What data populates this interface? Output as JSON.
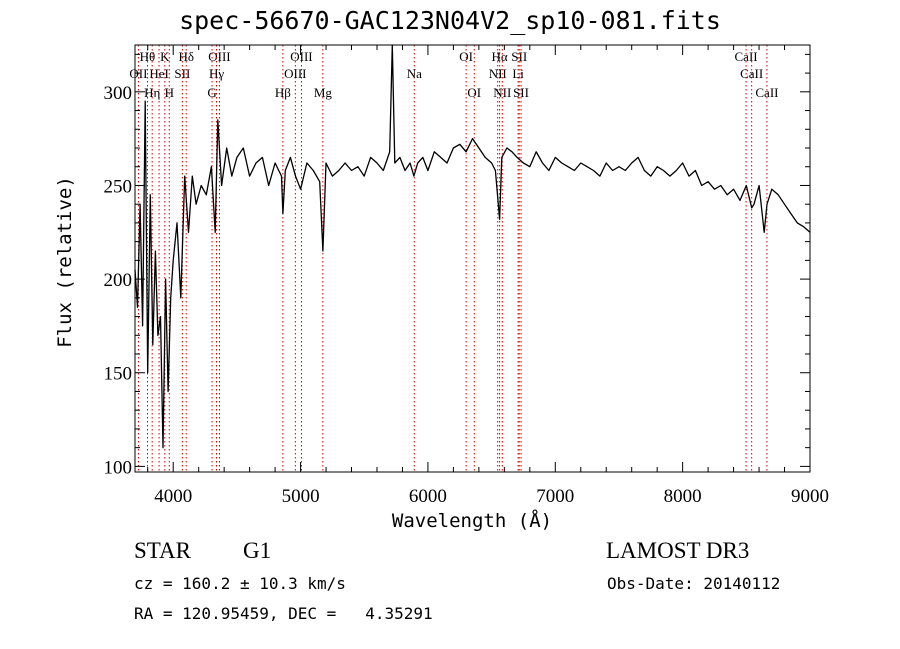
{
  "chart_data": {
    "type": "line",
    "title": "spec-56670-GAC123N04V2_sp10-081.fits",
    "xlabel": "Wavelength (Å)",
    "ylabel": "Flux (relative)",
    "xlim": [
      3700,
      9000
    ],
    "ylim": [
      97,
      325
    ],
    "xticks": [
      4000,
      5000,
      6000,
      7000,
      8000,
      9000
    ],
    "yticks": [
      100,
      150,
      200,
      250,
      300
    ],
    "series": [
      {
        "name": "flux",
        "x": [
          3700,
          3720,
          3740,
          3760,
          3780,
          3800,
          3820,
          3840,
          3860,
          3880,
          3900,
          3920,
          3940,
          3960,
          3980,
          4000,
          4030,
          4060,
          4090,
          4120,
          4150,
          4180,
          4220,
          4260,
          4300,
          4330,
          4350,
          4380,
          4420,
          4460,
          4500,
          4550,
          4600,
          4650,
          4700,
          4750,
          4800,
          4850,
          4861,
          4880,
          4920,
          4960,
          5000,
          5050,
          5100,
          5150,
          5175,
          5200,
          5250,
          5300,
          5350,
          5400,
          5450,
          5500,
          5550,
          5600,
          5650,
          5700,
          5720,
          5740,
          5780,
          5820,
          5860,
          5890,
          5920,
          5960,
          6000,
          6050,
          6100,
          6150,
          6200,
          6250,
          6300,
          6350,
          6400,
          6450,
          6500,
          6530,
          6563,
          6580,
          6620,
          6660,
          6700,
          6750,
          6800,
          6850,
          6900,
          6950,
          7000,
          7050,
          7100,
          7150,
          7200,
          7250,
          7300,
          7350,
          7400,
          7450,
          7500,
          7550,
          7600,
          7650,
          7700,
          7750,
          7800,
          7850,
          7900,
          7950,
          8000,
          8050,
          8100,
          8150,
          8200,
          8250,
          8300,
          8350,
          8400,
          8450,
          8500,
          8542,
          8560,
          8600,
          8640,
          8662,
          8700,
          8750,
          8800,
          8850,
          8900,
          8950,
          9000
        ],
        "y": [
          205,
          185,
          240,
          175,
          295,
          150,
          245,
          165,
          215,
          170,
          180,
          110,
          200,
          140,
          190,
          210,
          230,
          190,
          255,
          225,
          255,
          240,
          250,
          245,
          260,
          225,
          285,
          250,
          270,
          255,
          265,
          270,
          255,
          262,
          265,
          250,
          262,
          255,
          235,
          258,
          265,
          255,
          248,
          262,
          258,
          252,
          215,
          262,
          255,
          258,
          262,
          258,
          260,
          255,
          265,
          262,
          258,
          268,
          325,
          262,
          265,
          258,
          262,
          255,
          262,
          265,
          258,
          268,
          265,
          262,
          270,
          272,
          268,
          275,
          270,
          265,
          262,
          258,
          232,
          265,
          270,
          268,
          265,
          262,
          260,
          268,
          262,
          258,
          265,
          262,
          260,
          258,
          262,
          260,
          258,
          255,
          262,
          258,
          260,
          258,
          262,
          265,
          258,
          255,
          260,
          258,
          255,
          258,
          262,
          255,
          258,
          250,
          252,
          248,
          250,
          245,
          248,
          242,
          250,
          238,
          240,
          250,
          225,
          240,
          248,
          245,
          240,
          235,
          230,
          228,
          225
        ]
      }
    ],
    "grid": false
  },
  "lines": [
    {
      "name": "H-theta",
      "label": "Hθ",
      "wave": 3798,
      "row": 1
    },
    {
      "name": "O-II",
      "label": "OII",
      "wave": 3727,
      "row": 2
    },
    {
      "name": "Ca-II-K",
      "label": "K",
      "wave": 3934,
      "row": 1
    },
    {
      "name": "He-I",
      "label": "HeI",
      "wave": 3889,
      "row": 2
    },
    {
      "name": "H-delta",
      "label": "Hδ",
      "wave": 4102,
      "row": 1
    },
    {
      "name": "S-II-4072",
      "label": "SII",
      "wave": 4072,
      "row": 2
    },
    {
      "name": "H-eta",
      "label": "Hη",
      "wave": 3835,
      "row": 3
    },
    {
      "name": "Ca-II-H",
      "label": "H",
      "wave": 3969,
      "row": 3
    },
    {
      "name": "O-III-4363",
      "label": "OIII",
      "wave": 4363,
      "row": 1
    },
    {
      "name": "H-gamma",
      "label": "Hγ",
      "wave": 4340,
      "row": 2
    },
    {
      "name": "G-band",
      "label": "G",
      "wave": 4305,
      "row": 3
    },
    {
      "name": "H-beta",
      "label": "Hβ",
      "wave": 4861,
      "row": 3
    },
    {
      "name": "O-III-5007",
      "label": "OIII",
      "wave": 5007,
      "row": 1
    },
    {
      "name": "O-III-4959",
      "label": "OIII",
      "wave": 4959,
      "row": 2
    },
    {
      "name": "Mg",
      "label": "Mg",
      "wave": 5175,
      "row": 3
    },
    {
      "name": "Na",
      "label": "Na",
      "wave": 5893,
      "row": 2
    },
    {
      "name": "O-I-6300",
      "label": "OI",
      "wave": 6300,
      "row": 1
    },
    {
      "name": "O-I-6364",
      "label": "OI",
      "wave": 6364,
      "row": 3
    },
    {
      "name": "H-alpha",
      "label": "Hα",
      "wave": 6563,
      "row": 1
    },
    {
      "name": "S-II-6717",
      "label": "SII",
      "wave": 6717,
      "row": 1
    },
    {
      "name": "N-II-6548",
      "label": "NII",
      "wave": 6548,
      "row": 2
    },
    {
      "name": "Li",
      "label": "Li",
      "wave": 6708,
      "row": 2
    },
    {
      "name": "N-II-6584",
      "label": "NII",
      "wave": 6584,
      "row": 3
    },
    {
      "name": "S-II-6731",
      "label": "SII",
      "wave": 6731,
      "row": 3
    },
    {
      "name": "Ca-II-8498",
      "label": "CaII",
      "wave": 8498,
      "row": 1
    },
    {
      "name": "Ca-II-8542",
      "label": "CaII",
      "wave": 8542,
      "row": 2
    },
    {
      "name": "Ca-II-8662",
      "label": "CaII",
      "wave": 8662,
      "row": 3
    }
  ],
  "line_color": "#cc0000",
  "info": {
    "class": "STAR",
    "subclass": "G1",
    "survey": "LAMOST DR3",
    "cz": "cz = 160.2 ± 10.3 km/s",
    "obs_date": "Obs-Date: 20140112",
    "radec": "RA = 120.95459, DEC =   4.35291"
  }
}
